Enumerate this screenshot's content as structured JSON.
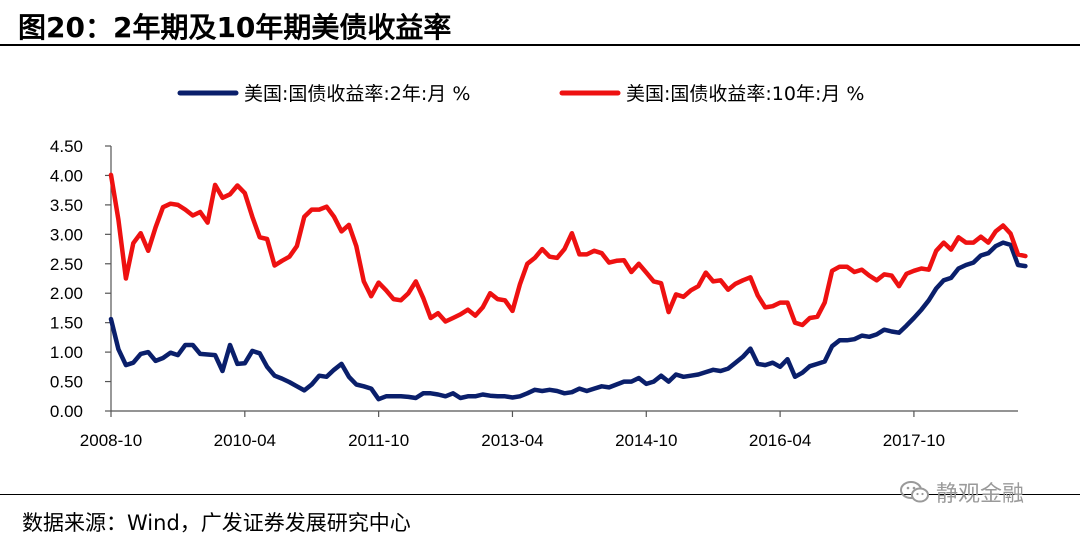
{
  "figure": {
    "title": "图20：2年期及10年期美债收益率",
    "source": "数据来源：Wind，广发证券发展研究中心",
    "watermark": "静观金融"
  },
  "chart_data": {
    "type": "line",
    "title": "",
    "xlabel": "",
    "ylabel": "",
    "ylim": [
      0,
      4.5
    ],
    "y_ticks": [
      "0.00",
      "0.50",
      "1.00",
      "1.50",
      "2.00",
      "2.50",
      "3.00",
      "3.50",
      "4.00",
      "4.50"
    ],
    "x_start": "2008-10",
    "x_end": "2018-12",
    "x_ticks": [
      "2008-10",
      "2010-04",
      "2011-10",
      "2013-04",
      "2014-10",
      "2016-04",
      "2017-10"
    ],
    "grid": false,
    "legend_position": "top",
    "series": [
      {
        "name": "美国:国债收益率:2年:月 %",
        "color": "#0a1f6b",
        "points": [
          [
            "2008-10",
            1.56
          ],
          [
            "2008-11",
            1.05
          ],
          [
            "2008-12",
            0.78
          ],
          [
            "2009-01",
            0.82
          ],
          [
            "2009-02",
            0.97
          ],
          [
            "2009-03",
            1.0
          ],
          [
            "2009-04",
            0.85
          ],
          [
            "2009-05",
            0.9
          ],
          [
            "2009-06",
            0.99
          ],
          [
            "2009-07",
            0.95
          ],
          [
            "2009-08",
            1.12
          ],
          [
            "2009-09",
            1.12
          ],
          [
            "2009-10",
            0.97
          ],
          [
            "2009-11",
            0.96
          ],
          [
            "2009-12",
            0.95
          ],
          [
            "2010-01",
            0.68
          ],
          [
            "2010-02",
            1.12
          ],
          [
            "2010-03",
            0.8
          ],
          [
            "2010-04",
            0.81
          ],
          [
            "2010-05",
            1.02
          ],
          [
            "2010-06",
            0.98
          ],
          [
            "2010-07",
            0.75
          ],
          [
            "2010-08",
            0.6
          ],
          [
            "2010-09",
            0.55
          ],
          [
            "2010-10",
            0.49
          ],
          [
            "2010-11",
            0.42
          ],
          [
            "2010-12",
            0.35
          ],
          [
            "2011-01",
            0.45
          ],
          [
            "2011-02",
            0.6
          ],
          [
            "2011-03",
            0.58
          ],
          [
            "2011-04",
            0.7
          ],
          [
            "2011-05",
            0.8
          ],
          [
            "2011-06",
            0.58
          ],
          [
            "2011-07",
            0.45
          ],
          [
            "2011-08",
            0.42
          ],
          [
            "2011-09",
            0.38
          ],
          [
            "2011-10",
            0.2
          ],
          [
            "2011-11",
            0.25
          ],
          [
            "2011-12",
            0.25
          ],
          [
            "2012-01",
            0.25
          ],
          [
            "2012-02",
            0.24
          ],
          [
            "2012-03",
            0.22
          ],
          [
            "2012-04",
            0.3
          ],
          [
            "2012-05",
            0.3
          ],
          [
            "2012-06",
            0.28
          ],
          [
            "2012-07",
            0.25
          ],
          [
            "2012-08",
            0.3
          ],
          [
            "2012-09",
            0.22
          ],
          [
            "2012-10",
            0.25
          ],
          [
            "2012-11",
            0.25
          ],
          [
            "2012-12",
            0.28
          ],
          [
            "2013-01",
            0.26
          ],
          [
            "2013-02",
            0.25
          ],
          [
            "2013-03",
            0.25
          ],
          [
            "2013-04",
            0.23
          ],
          [
            "2013-05",
            0.25
          ],
          [
            "2013-06",
            0.3
          ],
          [
            "2013-07",
            0.36
          ],
          [
            "2013-08",
            0.34
          ],
          [
            "2013-09",
            0.36
          ],
          [
            "2013-10",
            0.34
          ],
          [
            "2013-11",
            0.3
          ],
          [
            "2013-12",
            0.32
          ],
          [
            "2014-01",
            0.38
          ],
          [
            "2014-02",
            0.34
          ],
          [
            "2014-03",
            0.38
          ],
          [
            "2014-04",
            0.42
          ],
          [
            "2014-05",
            0.4
          ],
          [
            "2014-06",
            0.45
          ],
          [
            "2014-07",
            0.5
          ],
          [
            "2014-08",
            0.5
          ],
          [
            "2014-09",
            0.56
          ],
          [
            "2014-10",
            0.46
          ],
          [
            "2014-11",
            0.5
          ],
          [
            "2014-12",
            0.6
          ],
          [
            "2015-01",
            0.5
          ],
          [
            "2015-02",
            0.62
          ],
          [
            "2015-03",
            0.58
          ],
          [
            "2015-04",
            0.6
          ],
          [
            "2015-05",
            0.62
          ],
          [
            "2015-06",
            0.66
          ],
          [
            "2015-07",
            0.7
          ],
          [
            "2015-08",
            0.68
          ],
          [
            "2015-09",
            0.72
          ],
          [
            "2015-10",
            0.82
          ],
          [
            "2015-11",
            0.92
          ],
          [
            "2015-12",
            1.06
          ],
          [
            "2016-01",
            0.8
          ],
          [
            "2016-02",
            0.78
          ],
          [
            "2016-03",
            0.82
          ],
          [
            "2016-04",
            0.75
          ],
          [
            "2016-05",
            0.88
          ],
          [
            "2016-06",
            0.58
          ],
          [
            "2016-07",
            0.65
          ],
          [
            "2016-08",
            0.76
          ],
          [
            "2016-09",
            0.8
          ],
          [
            "2016-10",
            0.84
          ],
          [
            "2016-11",
            1.1
          ],
          [
            "2016-12",
            1.2
          ],
          [
            "2017-01",
            1.2
          ],
          [
            "2017-02",
            1.22
          ],
          [
            "2017-03",
            1.28
          ],
          [
            "2017-04",
            1.26
          ],
          [
            "2017-05",
            1.3
          ],
          [
            "2017-06",
            1.38
          ],
          [
            "2017-07",
            1.35
          ],
          [
            "2017-08",
            1.33
          ],
          [
            "2017-09",
            1.45
          ],
          [
            "2017-10",
            1.58
          ],
          [
            "2017-11",
            1.72
          ],
          [
            "2017-12",
            1.88
          ],
          [
            "2018-01",
            2.08
          ],
          [
            "2018-02",
            2.22
          ],
          [
            "2018-03",
            2.26
          ],
          [
            "2018-04",
            2.42
          ],
          [
            "2018-05",
            2.48
          ],
          [
            "2018-06",
            2.52
          ],
          [
            "2018-07",
            2.64
          ],
          [
            "2018-08",
            2.68
          ],
          [
            "2018-09",
            2.8
          ],
          [
            "2018-10",
            2.86
          ],
          [
            "2018-11",
            2.82
          ],
          [
            "2018-12",
            2.48
          ],
          [
            "2019-01",
            2.46
          ]
        ]
      },
      {
        "name": "美国:国债收益率:10年:月 %",
        "color": "#ee1111",
        "points": [
          [
            "2008-10",
            4.01
          ],
          [
            "2008-11",
            3.25
          ],
          [
            "2008-12",
            2.25
          ],
          [
            "2009-01",
            2.85
          ],
          [
            "2009-02",
            3.02
          ],
          [
            "2009-03",
            2.72
          ],
          [
            "2009-04",
            3.12
          ],
          [
            "2009-05",
            3.46
          ],
          [
            "2009-06",
            3.52
          ],
          [
            "2009-07",
            3.5
          ],
          [
            "2009-08",
            3.42
          ],
          [
            "2009-09",
            3.32
          ],
          [
            "2009-10",
            3.38
          ],
          [
            "2009-11",
            3.2
          ],
          [
            "2009-12",
            3.84
          ],
          [
            "2010-01",
            3.62
          ],
          [
            "2010-02",
            3.68
          ],
          [
            "2010-03",
            3.83
          ],
          [
            "2010-04",
            3.7
          ],
          [
            "2010-05",
            3.3
          ],
          [
            "2010-06",
            2.95
          ],
          [
            "2010-07",
            2.92
          ],
          [
            "2010-08",
            2.47
          ],
          [
            "2010-09",
            2.55
          ],
          [
            "2010-10",
            2.62
          ],
          [
            "2010-11",
            2.8
          ],
          [
            "2010-12",
            3.3
          ],
          [
            "2011-01",
            3.42
          ],
          [
            "2011-02",
            3.42
          ],
          [
            "2011-03",
            3.47
          ],
          [
            "2011-04",
            3.3
          ],
          [
            "2011-05",
            3.05
          ],
          [
            "2011-06",
            3.16
          ],
          [
            "2011-07",
            2.8
          ],
          [
            "2011-08",
            2.2
          ],
          [
            "2011-09",
            1.95
          ],
          [
            "2011-10",
            2.18
          ],
          [
            "2011-11",
            2.05
          ],
          [
            "2011-12",
            1.9
          ],
          [
            "2012-01",
            1.88
          ],
          [
            "2012-02",
            2.0
          ],
          [
            "2012-03",
            2.2
          ],
          [
            "2012-04",
            1.92
          ],
          [
            "2012-05",
            1.58
          ],
          [
            "2012-06",
            1.66
          ],
          [
            "2012-07",
            1.52
          ],
          [
            "2012-08",
            1.58
          ],
          [
            "2012-09",
            1.64
          ],
          [
            "2012-10",
            1.72
          ],
          [
            "2012-11",
            1.62
          ],
          [
            "2012-12",
            1.76
          ],
          [
            "2013-01",
            2.0
          ],
          [
            "2013-02",
            1.9
          ],
          [
            "2013-03",
            1.88
          ],
          [
            "2013-04",
            1.7
          ],
          [
            "2013-05",
            2.15
          ],
          [
            "2013-06",
            2.5
          ],
          [
            "2013-07",
            2.6
          ],
          [
            "2013-08",
            2.75
          ],
          [
            "2013-09",
            2.62
          ],
          [
            "2013-10",
            2.6
          ],
          [
            "2013-11",
            2.75
          ],
          [
            "2013-12",
            3.02
          ],
          [
            "2014-01",
            2.66
          ],
          [
            "2014-02",
            2.66
          ],
          [
            "2014-03",
            2.72
          ],
          [
            "2014-04",
            2.68
          ],
          [
            "2014-05",
            2.52
          ],
          [
            "2014-06",
            2.55
          ],
          [
            "2014-07",
            2.56
          ],
          [
            "2014-08",
            2.36
          ],
          [
            "2014-09",
            2.5
          ],
          [
            "2014-10",
            2.35
          ],
          [
            "2014-11",
            2.2
          ],
          [
            "2014-12",
            2.17
          ],
          [
            "2015-01",
            1.68
          ],
          [
            "2015-02",
            1.98
          ],
          [
            "2015-03",
            1.94
          ],
          [
            "2015-04",
            2.05
          ],
          [
            "2015-05",
            2.12
          ],
          [
            "2015-06",
            2.35
          ],
          [
            "2015-07",
            2.2
          ],
          [
            "2015-08",
            2.22
          ],
          [
            "2015-09",
            2.06
          ],
          [
            "2015-10",
            2.16
          ],
          [
            "2015-11",
            2.22
          ],
          [
            "2015-12",
            2.27
          ],
          [
            "2016-01",
            1.96
          ],
          [
            "2016-02",
            1.76
          ],
          [
            "2016-03",
            1.78
          ],
          [
            "2016-04",
            1.84
          ],
          [
            "2016-05",
            1.84
          ],
          [
            "2016-06",
            1.5
          ],
          [
            "2016-07",
            1.46
          ],
          [
            "2016-08",
            1.58
          ],
          [
            "2016-09",
            1.6
          ],
          [
            "2016-10",
            1.84
          ],
          [
            "2016-11",
            2.38
          ],
          [
            "2016-12",
            2.45
          ],
          [
            "2017-01",
            2.45
          ],
          [
            "2017-02",
            2.36
          ],
          [
            "2017-03",
            2.4
          ],
          [
            "2017-04",
            2.3
          ],
          [
            "2017-05",
            2.22
          ],
          [
            "2017-06",
            2.32
          ],
          [
            "2017-07",
            2.3
          ],
          [
            "2017-08",
            2.12
          ],
          [
            "2017-09",
            2.33
          ],
          [
            "2017-10",
            2.38
          ],
          [
            "2017-11",
            2.42
          ],
          [
            "2017-12",
            2.4
          ],
          [
            "2018-01",
            2.72
          ],
          [
            "2018-02",
            2.86
          ],
          [
            "2018-03",
            2.74
          ],
          [
            "2018-04",
            2.95
          ],
          [
            "2018-05",
            2.86
          ],
          [
            "2018-06",
            2.86
          ],
          [
            "2018-07",
            2.96
          ],
          [
            "2018-08",
            2.86
          ],
          [
            "2018-09",
            3.05
          ],
          [
            "2018-10",
            3.15
          ],
          [
            "2018-11",
            3.01
          ],
          [
            "2018-12",
            2.66
          ],
          [
            "2019-01",
            2.63
          ]
        ]
      }
    ]
  }
}
